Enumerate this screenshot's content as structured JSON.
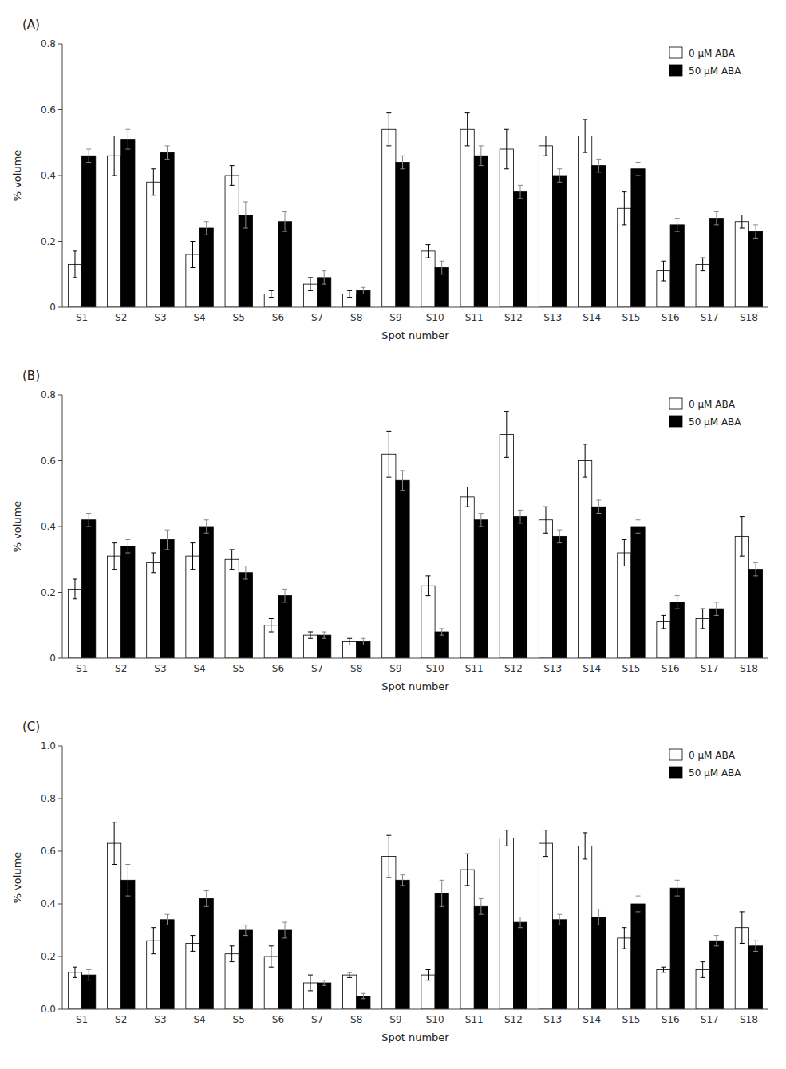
{
  "chart_data": [
    {
      "type": "bar",
      "title": "(A)",
      "categories": [
        "S1",
        "S2",
        "S3",
        "S4",
        "S5",
        "S6",
        "S7",
        "S8",
        "S9",
        "S10",
        "S11",
        "S12",
        "S13",
        "S14",
        "S15",
        "S16",
        "S17",
        "S18"
      ],
      "series": [
        {
          "name": "0 μM ABA",
          "color": "white",
          "values": [
            0.13,
            0.46,
            0.38,
            0.16,
            0.4,
            0.04,
            0.07,
            0.04,
            0.54,
            0.17,
            0.54,
            0.48,
            0.49,
            0.52,
            0.3,
            0.11,
            0.13,
            0.26
          ],
          "errors": [
            0.04,
            0.06,
            0.04,
            0.04,
            0.03,
            0.01,
            0.02,
            0.01,
            0.05,
            0.02,
            0.05,
            0.06,
            0.03,
            0.05,
            0.05,
            0.03,
            0.02,
            0.02
          ]
        },
        {
          "name": "50 μM ABA",
          "color": "black",
          "values": [
            0.46,
            0.51,
            0.47,
            0.24,
            0.28,
            0.26,
            0.09,
            0.05,
            0.44,
            0.12,
            0.46,
            0.35,
            0.4,
            0.43,
            0.42,
            0.25,
            0.27,
            0.23
          ],
          "errors": [
            0.02,
            0.03,
            0.02,
            0.02,
            0.04,
            0.03,
            0.02,
            0.01,
            0.02,
            0.02,
            0.03,
            0.02,
            0.02,
            0.02,
            0.02,
            0.02,
            0.02,
            0.02
          ]
        }
      ],
      "xlabel": "Spot number",
      "ylabel": "% volume",
      "ylim": [
        0,
        0.8
      ],
      "yticks": [
        0,
        0.2,
        0.4,
        0.6,
        0.8
      ],
      "grid": false,
      "legend": "upper-right"
    },
    {
      "type": "bar",
      "title": "(B)",
      "categories": [
        "S1",
        "S2",
        "S3",
        "S4",
        "S5",
        "S6",
        "S7",
        "S8",
        "S9",
        "S10",
        "S11",
        "S12",
        "S13",
        "S14",
        "S15",
        "S16",
        "S17",
        "S18"
      ],
      "series": [
        {
          "name": "0 μM ABA",
          "color": "white",
          "values": [
            0.21,
            0.31,
            0.29,
            0.31,
            0.3,
            0.1,
            0.07,
            0.05,
            0.62,
            0.22,
            0.49,
            0.68,
            0.42,
            0.6,
            0.32,
            0.11,
            0.12,
            0.37
          ],
          "errors": [
            0.03,
            0.04,
            0.03,
            0.04,
            0.03,
            0.02,
            0.01,
            0.01,
            0.07,
            0.03,
            0.03,
            0.07,
            0.04,
            0.05,
            0.04,
            0.02,
            0.03,
            0.06
          ]
        },
        {
          "name": "50 μM ABA",
          "color": "black",
          "values": [
            0.42,
            0.34,
            0.36,
            0.4,
            0.26,
            0.19,
            0.07,
            0.05,
            0.54,
            0.08,
            0.42,
            0.43,
            0.37,
            0.46,
            0.4,
            0.17,
            0.15,
            0.27
          ],
          "errors": [
            0.02,
            0.02,
            0.03,
            0.02,
            0.02,
            0.02,
            0.01,
            0.01,
            0.03,
            0.01,
            0.02,
            0.02,
            0.02,
            0.02,
            0.02,
            0.02,
            0.02,
            0.02
          ]
        }
      ],
      "xlabel": "Spot number",
      "ylabel": "% volume",
      "ylim": [
        0,
        0.8
      ],
      "yticks": [
        0,
        0.2,
        0.4,
        0.6,
        0.8
      ],
      "grid": false,
      "legend": "upper-right"
    },
    {
      "type": "bar",
      "title": "(C)",
      "categories": [
        "S1",
        "S2",
        "S3",
        "S4",
        "S5",
        "S6",
        "S7",
        "S8",
        "S9",
        "S10",
        "S11",
        "S12",
        "S13",
        "S14",
        "S15",
        "S16",
        "S17",
        "S18"
      ],
      "series": [
        {
          "name": "0 μM ABA",
          "color": "white",
          "values": [
            0.14,
            0.63,
            0.26,
            0.25,
            0.21,
            0.2,
            0.1,
            0.13,
            0.58,
            0.13,
            0.53,
            0.65,
            0.63,
            0.62,
            0.27,
            0.15,
            0.15,
            0.31
          ],
          "errors": [
            0.02,
            0.08,
            0.05,
            0.03,
            0.03,
            0.04,
            0.03,
            0.01,
            0.08,
            0.02,
            0.06,
            0.03,
            0.05,
            0.05,
            0.04,
            0.01,
            0.03,
            0.06
          ]
        },
        {
          "name": "50 μM ABA",
          "color": "black",
          "values": [
            0.13,
            0.49,
            0.34,
            0.42,
            0.3,
            0.3,
            0.1,
            0.05,
            0.49,
            0.44,
            0.39,
            0.33,
            0.34,
            0.35,
            0.4,
            0.46,
            0.26,
            0.24
          ],
          "errors": [
            0.02,
            0.06,
            0.02,
            0.03,
            0.02,
            0.03,
            0.01,
            0.01,
            0.02,
            0.05,
            0.03,
            0.02,
            0.02,
            0.03,
            0.03,
            0.03,
            0.02,
            0.02
          ]
        }
      ],
      "xlabel": "Spot number",
      "ylabel": "% volume",
      "ylim": [
        0,
        1.0
      ],
      "yticks": [
        {
          "value": 0.0,
          "label": "0.0"
        },
        0.2,
        0.4,
        0.6,
        0.8,
        {
          "value": 1.0,
          "label": "1.0"
        }
      ],
      "grid": false,
      "legend": "upper-right"
    }
  ]
}
